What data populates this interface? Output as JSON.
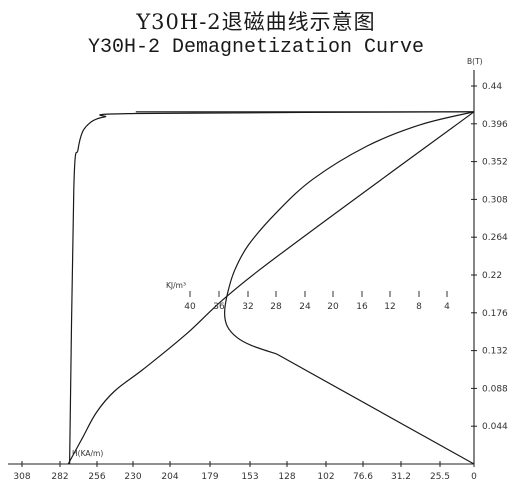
{
  "chart_data": {
    "type": "line",
    "title": "Y30H-2退磁曲线示意图",
    "subtitle": "Y30H-2 Demagnetization Curve",
    "xlabel": "H(KA/m)",
    "ylabel": "B(T)",
    "energy_label": "KJ/m³",
    "x_ticks": [
      "308",
      "282",
      "256",
      "230",
      "204",
      "179",
      "153",
      "128",
      "102",
      "76.6",
      "31.2",
      "25.5",
      "0"
    ],
    "y_ticks": [
      "0.44",
      "0.396",
      "0.352",
      "0.308",
      "0.264",
      "0.22",
      "0.176",
      "0.132",
      "0.088",
      "0.044"
    ],
    "energy_ticks": [
      "40",
      "36",
      "32",
      "28",
      "24",
      "20",
      "16",
      "12",
      "8",
      "4"
    ],
    "xlim": [
      308,
      0
    ],
    "ylim": [
      0,
      0.44
    ],
    "grid": false,
    "series": [
      {
        "x": [
          0,
          240,
          262,
          270,
          274,
          278,
          281,
          284,
          287
        ],
        "y": [
          0.41,
          0.408,
          0.404,
          0.4,
          0.395,
          0.386,
          0.366,
          0.32,
          0
        ]
      },
      {
        "x": [
          0,
          38,
          76,
          114,
          140,
          160,
          170,
          175,
          177,
          175,
          168,
          158,
          140
        ],
        "y": [
          0.41,
          0.395,
          0.37,
          0.332,
          0.293,
          0.255,
          0.225,
          0.198,
          0.176,
          0.16,
          0.147,
          0.138,
          0.128
        ]
      },
      {
        "x": [
          0,
          140
        ],
        "y": [
          0,
          0.128
        ]
      },
      {
        "x": [
          0,
          153,
          205,
          235,
          255,
          268,
          278,
          288
        ],
        "y": [
          0.41,
          0.225,
          0.15,
          0.11,
          0.085,
          0.06,
          0.03,
          0
        ]
      },
      {
        "x": [
          0,
          240
        ],
        "y": [
          0.41,
          0.41
        ]
      }
    ]
  }
}
